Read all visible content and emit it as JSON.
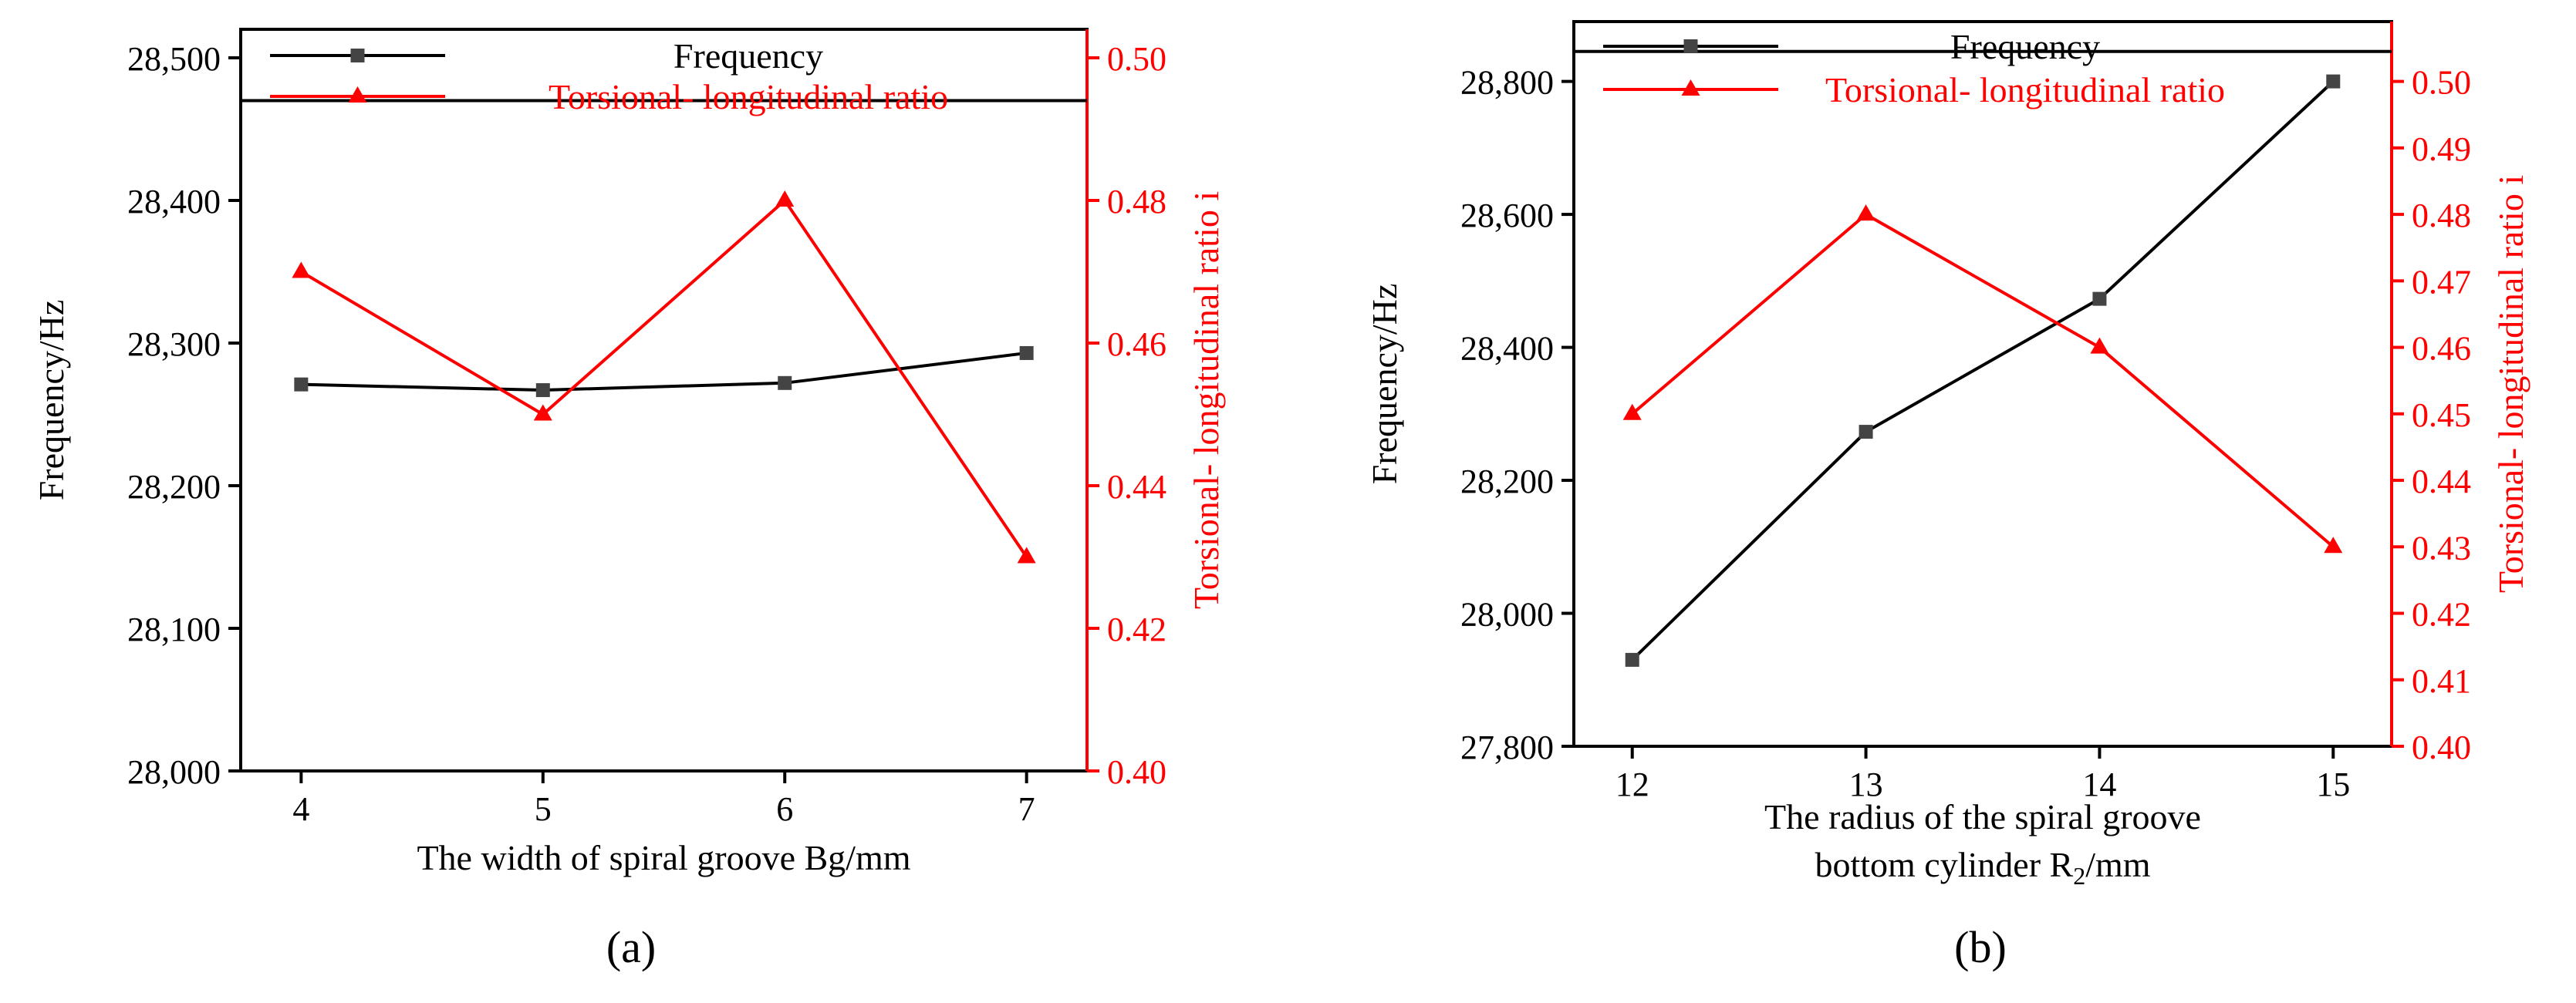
{
  "colors": {
    "freq": "#000000",
    "freq_marker": "#444444",
    "ratio": "#ff0000",
    "axis": "#000000"
  },
  "chart_data": [
    {
      "id": "a",
      "type": "line",
      "panel_label": "(a)",
      "xlabel": "The width of spiral groove Bg/mm",
      "ylabel_left": "Frequency/Hz",
      "ylabel_right": "Torsional- longitudinal ratio i",
      "x": [
        4,
        5,
        6,
        7
      ],
      "x_ticks": [
        "4",
        "5",
        "6",
        "7"
      ],
      "xlim": [
        3.75,
        7.25
      ],
      "ylim_left": [
        28000,
        28520
      ],
      "y_ticks_left": [
        28000,
        28100,
        28200,
        28300,
        28400,
        28500
      ],
      "y_tick_labels_left": [
        "28,000",
        "28,100",
        "28,200",
        "28,300",
        "28,400",
        "28,500"
      ],
      "ylim_right": [
        0.4,
        0.504
      ],
      "y_ticks_right": [
        0.4,
        0.42,
        0.44,
        0.46,
        0.48,
        0.5
      ],
      "y_tick_labels_right": [
        "0.40",
        "0.42",
        "0.44",
        "0.46",
        "0.48",
        "0.50"
      ],
      "legend_boundary_left": 28470,
      "legend": [
        "Frequency",
        "Torsional- longitudinal ratio"
      ],
      "series": [
        {
          "name": "Frequency",
          "axis": "left",
          "marker": "square",
          "values": [
            28271,
            28267,
            28272,
            28293
          ]
        },
        {
          "name": "Torsional- longitudinal ratio",
          "axis": "right",
          "marker": "triangle",
          "values": [
            0.47,
            0.45,
            0.48,
            0.43
          ]
        }
      ]
    },
    {
      "id": "b",
      "type": "line",
      "panel_label": "(b)",
      "xlabel": [
        "The radius of the spiral groove",
        "bottom cylinder  R",
        "2",
        "/mm"
      ],
      "ylabel_left": "Frequency/Hz",
      "ylabel_right": "Torsional- longitudinal ratio i",
      "x": [
        12,
        13,
        14,
        15
      ],
      "x_ticks": [
        "12",
        "13",
        "14",
        "15"
      ],
      "xlim": [
        11.75,
        15.25
      ],
      "ylim_left": [
        27800,
        28890
      ],
      "y_ticks_left": [
        27800,
        28000,
        28200,
        28400,
        28600,
        28800
      ],
      "y_tick_labels_left": [
        "27,800",
        "28,000",
        "28,200",
        "28,400",
        "28,600",
        "28,800"
      ],
      "ylim_right": [
        0.4,
        0.509
      ],
      "y_ticks_right": [
        0.4,
        0.41,
        0.42,
        0.43,
        0.44,
        0.45,
        0.46,
        0.47,
        0.48,
        0.49,
        0.5
      ],
      "y_tick_labels_right": [
        "0.40",
        "0.41",
        "0.42",
        "0.43",
        "0.44",
        "0.45",
        "0.46",
        "0.47",
        "0.48",
        "0.49",
        "0.50"
      ],
      "legend_boundary_left": 28845,
      "legend": [
        "Frequency",
        "Torsional- longitudinal ratio"
      ],
      "series": [
        {
          "name": "Frequency",
          "axis": "left",
          "marker": "square",
          "values": [
            27930,
            28273,
            28473,
            28800
          ]
        },
        {
          "name": "Torsional- longitudinal ratio",
          "axis": "right",
          "marker": "triangle",
          "values": [
            0.45,
            0.48,
            0.46,
            0.43
          ]
        }
      ]
    }
  ]
}
